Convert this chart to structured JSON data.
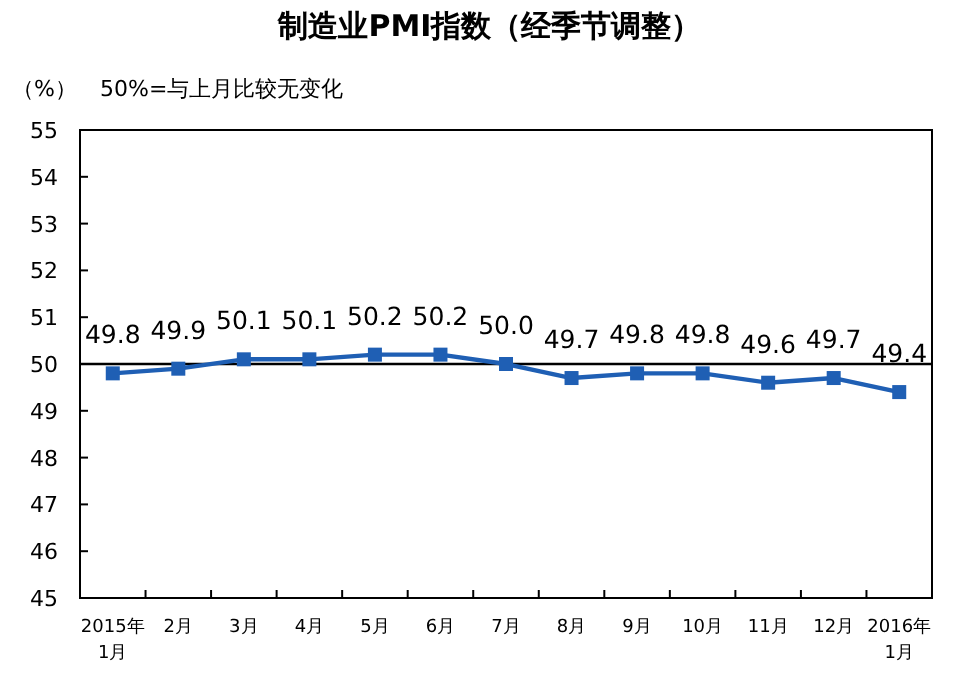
{
  "chart_data": {
    "type": "line",
    "title": "制造业PMI指数（经季节调整）",
    "ylabel": "（%）",
    "annotations": [
      "50%=与上月比较无变化"
    ],
    "categories": [
      "2015年\n1月",
      "2月",
      "3月",
      "4月",
      "5月",
      "6月",
      "7月",
      "8月",
      "9月",
      "10月",
      "11月",
      "12月",
      "2016年\n1月"
    ],
    "series": [
      {
        "color": "#1f5fb4",
        "values": [
          49.8,
          49.9,
          50.1,
          50.1,
          50.2,
          50.2,
          50.0,
          49.7,
          49.8,
          49.8,
          49.6,
          49.7,
          49.4
        ],
        "value_labels": [
          "49.8",
          "49.9",
          "50.1",
          "50.1",
          "50.2",
          "50.2",
          "50.0",
          "49.7",
          "49.8",
          "49.8",
          "49.6",
          "49.7",
          "49.4"
        ]
      }
    ],
    "ylim": [
      45,
      55
    ],
    "yticks": [
      45,
      46,
      47,
      48,
      49,
      50,
      51,
      52,
      53,
      54,
      55
    ],
    "ref_lines": [
      {
        "axis": "y",
        "value": 50,
        "color": "#000000"
      }
    ],
    "marker": "square",
    "line_style": "solid"
  }
}
